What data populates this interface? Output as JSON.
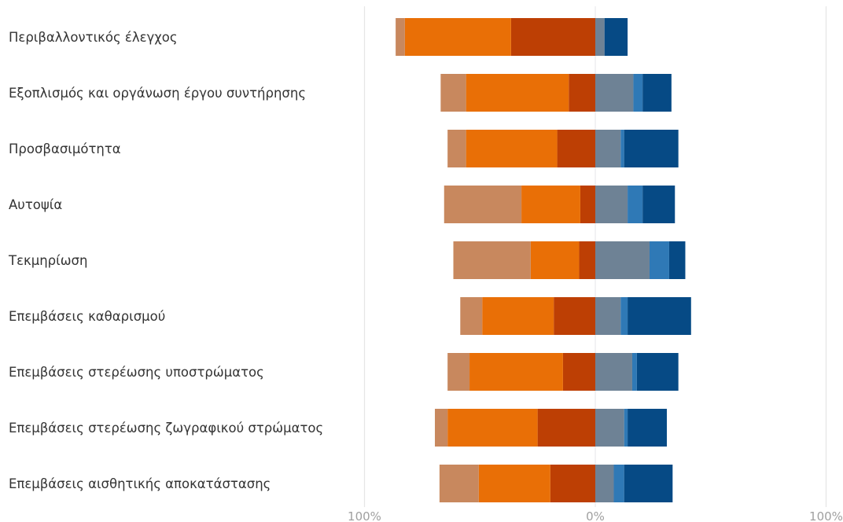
{
  "chart_data": {
    "type": "bar",
    "subtype": "diverging-stacked-horizontal",
    "title": "",
    "xlabel": "",
    "ylabel": "",
    "xlim": [
      -100,
      100
    ],
    "x_tick_labels": [
      "100%",
      "0%",
      "100%"
    ],
    "grid": true,
    "legend": "none",
    "categories": [
      "Περιβαλλοντικός έλεγχος",
      "Εξοπλισμός και οργάνωση έργου συντήρησης",
      "Προσβασιμότητα",
      "Αυτοψία",
      "Τεκμηρίωση",
      "Επεμβάσεις καθαρισμού",
      "Επεμβάσεις στερέωσης υποστρώματος",
      "Επεμβάσεις στερέωσης ζωγραφικού στρώματος",
      "Επεμβάσεις αισθητικής αποκατάστασης"
    ],
    "series": [
      {
        "side": "negative",
        "color": "#bd3f04",
        "values": [
          36.5,
          11.5,
          16.5,
          6.5,
          7,
          18,
          14,
          25,
          19.5
        ]
      },
      {
        "side": "negative",
        "color": "#e96f06",
        "values": [
          46,
          44.5,
          39.5,
          25.5,
          21,
          31,
          40.5,
          39,
          31
        ]
      },
      {
        "side": "negative",
        "color": "#c8885e",
        "values": [
          4,
          11,
          8,
          33.5,
          33.5,
          9.5,
          9.5,
          5.5,
          17
        ]
      },
      {
        "side": "positive",
        "color": "#6e8295",
        "values": [
          4,
          16.5,
          11,
          14,
          23.5,
          11,
          16,
          12.5,
          8
        ]
      },
      {
        "side": "positive",
        "color": "#2f79b6",
        "values": [
          0,
          4,
          1.5,
          6.5,
          8.5,
          3,
          2,
          1.5,
          4.5
        ]
      },
      {
        "side": "positive",
        "color": "#064a85",
        "values": [
          10,
          12.5,
          23.5,
          14,
          7,
          27.5,
          18,
          17,
          21
        ]
      }
    ],
    "colors": {
      "grid": "#e6e6e6",
      "zero_line": "#e8e8ec",
      "label_text": "#333333",
      "tick_text": "#a0a0a0"
    }
  }
}
